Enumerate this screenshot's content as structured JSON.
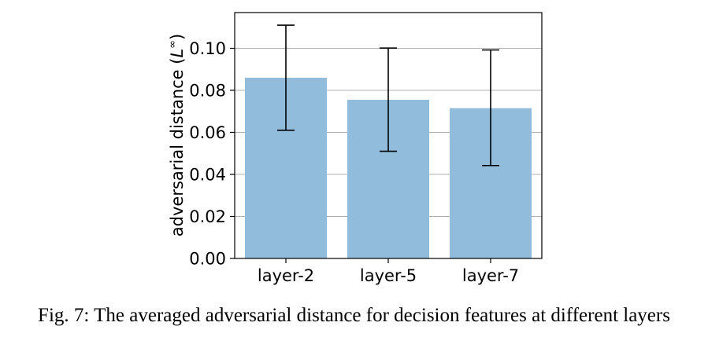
{
  "caption": "Fig. 7: The averaged adversarial distance for decision features at different layers",
  "chart_data": {
    "type": "bar",
    "categories": [
      "layer-2",
      "layer-5",
      "layer-7"
    ],
    "values": [
      0.086,
      0.0755,
      0.0715
    ],
    "error_low": [
      0.061,
      0.051,
      0.0442
    ],
    "error_high": [
      0.111,
      0.1001,
      0.0992
    ],
    "title": "",
    "xlabel": "",
    "ylabel": "adversarial distance (L∞)",
    "ylabel_main": "adversarial distance (",
    "ylabel_symbol": "L",
    "ylabel_superscript": "∞",
    "ylabel_close": ")",
    "ylim": [
      0,
      0.117
    ],
    "yticks": [
      0.0,
      0.02,
      0.04,
      0.06,
      0.08,
      0.1
    ],
    "ytick_labels": [
      "0.00",
      "0.02",
      "0.04",
      "0.06",
      "0.08",
      "0.10"
    ],
    "grid": "horizontal",
    "bar_color": "#91bcdb",
    "grid_color": "#b0b0b0",
    "errorbar_color": "#000000"
  }
}
